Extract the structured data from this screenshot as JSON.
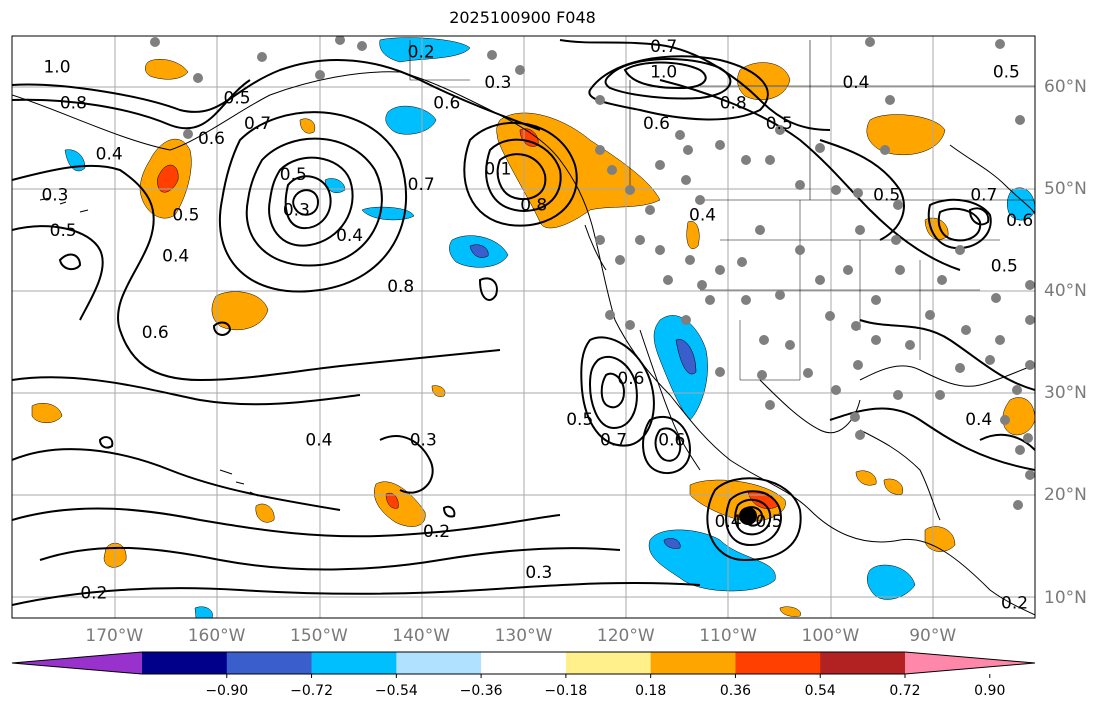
{
  "title": "2025100900 F048",
  "lat_labels": [
    {
      "text": "60°N",
      "lat": 60
    },
    {
      "text": "50°N",
      "lat": 50
    },
    {
      "text": "40°N",
      "lat": 40
    },
    {
      "text": "30°N",
      "lat": 30
    },
    {
      "text": "20°N",
      "lat": 20
    },
    {
      "text": "10°N",
      "lat": 10
    }
  ],
  "lon_labels": [
    {
      "text": "170°W",
      "lon": -170
    },
    {
      "text": "160°W",
      "lon": -160
    },
    {
      "text": "150°W",
      "lon": -150
    },
    {
      "text": "140°W",
      "lon": -140
    },
    {
      "text": "130°W",
      "lon": -130
    },
    {
      "text": "120°W",
      "lon": -120
    },
    {
      "text": "110°W",
      "lon": -110
    },
    {
      "text": "100°W",
      "lon": -100
    },
    {
      "text": "90°W",
      "lon": -90
    }
  ],
  "extent": {
    "lon_min": -180,
    "lon_max": -80,
    "lat_min": 8,
    "lat_max": 65
  },
  "colorbar": {
    "colors": [
      "#9932cc",
      "#00008b",
      "#3a5fcd",
      "#00bfff",
      "#b0e2ff",
      "#ffffff",
      "#fff08c",
      "#ffa500",
      "#ff4000",
      "#b22222",
      "#ff88aa"
    ],
    "tick_labels": [
      "−0.90",
      "−0.72",
      "−0.54",
      "−0.36",
      "−0.18",
      "0.18",
      "0.36",
      "0.54",
      "0.72",
      "0.90"
    ]
  },
  "contour_labels": [
    {
      "text": "1.0",
      "lon": -175.6,
      "lat": 62
    },
    {
      "text": "0.8",
      "lon": -174,
      "lat": 58.5
    },
    {
      "text": "0.5",
      "lon": -158,
      "lat": 59
    },
    {
      "text": "0.4",
      "lon": -170.5,
      "lat": 53.5
    },
    {
      "text": "0.3",
      "lon": -175.8,
      "lat": 49.5
    },
    {
      "text": "0.5",
      "lon": -175,
      "lat": 46
    },
    {
      "text": "0.5",
      "lon": -163,
      "lat": 47.5
    },
    {
      "text": "0.4",
      "lon": -164,
      "lat": 43.5
    },
    {
      "text": "0.6",
      "lon": -160.5,
      "lat": 55
    },
    {
      "text": "0.7",
      "lon": -156,
      "lat": 56.5
    },
    {
      "text": "0.5",
      "lon": -152.5,
      "lat": 51.5
    },
    {
      "text": "0.3",
      "lon": -152.2,
      "lat": 48
    },
    {
      "text": "0.4",
      "lon": -147,
      "lat": 45.5
    },
    {
      "text": "0.7",
      "lon": -140,
      "lat": 50.5
    },
    {
      "text": "0.8",
      "lon": -142,
      "lat": 40.5
    },
    {
      "text": "0.6",
      "lon": -166,
      "lat": 36
    },
    {
      "text": "0.4",
      "lon": -150,
      "lat": 25.5
    },
    {
      "text": "0.2",
      "lon": -140,
      "lat": 63.5
    },
    {
      "text": "0.3",
      "lon": -132.5,
      "lat": 60.5
    },
    {
      "text": "0.6",
      "lon": -137.5,
      "lat": 58.5
    },
    {
      "text": "0.1",
      "lon": -132.5,
      "lat": 52
    },
    {
      "text": "0.8",
      "lon": -129,
      "lat": 48.5
    },
    {
      "text": "0.7",
      "lon": -116.3,
      "lat": 64
    },
    {
      "text": "1.0",
      "lon": -116.3,
      "lat": 61.5
    },
    {
      "text": "0.8",
      "lon": -109.5,
      "lat": 58.5
    },
    {
      "text": "0.6",
      "lon": -117,
      "lat": 56.5
    },
    {
      "text": "0.5",
      "lon": -105,
      "lat": 56.5
    },
    {
      "text": "0.4",
      "lon": -97.5,
      "lat": 60.5
    },
    {
      "text": "0.5",
      "lon": -94.5,
      "lat": 49.5
    },
    {
      "text": "0.7",
      "lon": -85,
      "lat": 49.5
    },
    {
      "text": "0.6",
      "lon": -81.5,
      "lat": 47
    },
    {
      "text": "0.5",
      "lon": -83,
      "lat": 42.5
    },
    {
      "text": "0.5",
      "lon": -82.8,
      "lat": 61.5
    },
    {
      "text": "0.4",
      "lon": -112.5,
      "lat": 47.5
    },
    {
      "text": "0.6",
      "lon": -119.5,
      "lat": 31.5
    },
    {
      "text": "0.7",
      "lon": -121.2,
      "lat": 25.5
    },
    {
      "text": "0.6",
      "lon": -115.5,
      "lat": 25.5
    },
    {
      "text": "0.5",
      "lon": -124.5,
      "lat": 27.5
    },
    {
      "text": "0.3",
      "lon": -139.8,
      "lat": 25.5
    },
    {
      "text": "0.2",
      "lon": -138.5,
      "lat": 16.5
    },
    {
      "text": "0.3",
      "lon": -128.5,
      "lat": 12.5
    },
    {
      "text": "0.2",
      "lon": -172,
      "lat": 10.5
    },
    {
      "text": "0.4",
      "lon": -110,
      "lat": 17.5
    },
    {
      "text": "0.5",
      "lon": -106,
      "lat": 17.5
    },
    {
      "text": "0.4",
      "lon": -85.5,
      "lat": 27.5
    },
    {
      "text": "0.2",
      "lon": -82,
      "lat": 9.5
    }
  ]
}
